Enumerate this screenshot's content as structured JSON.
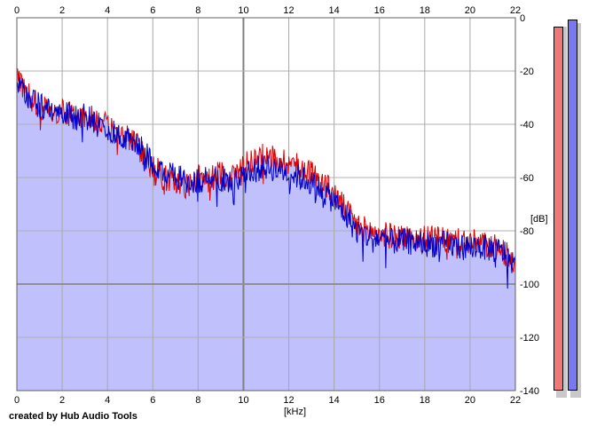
{
  "credit": "created by Hub Audio Tools",
  "chart_data": {
    "type": "area",
    "title": "",
    "xlabel": "[kHz]",
    "ylabel": "[dB]",
    "xlim": [
      0,
      22
    ],
    "ylim": [
      -140,
      0
    ],
    "x_ticks": [
      "0",
      "2",
      "4",
      "6",
      "8",
      "10",
      "12",
      "14",
      "16",
      "18",
      "20",
      "22"
    ],
    "y_ticks": [
      "0",
      "-20",
      "-40",
      "-60",
      "-80",
      "-100",
      "-120",
      "-140"
    ],
    "grid": true,
    "series": [
      {
        "color": "#e00000",
        "points": [
          [
            0,
            -22
          ],
          [
            0.5,
            -28
          ],
          [
            1,
            -33
          ],
          [
            1.5,
            -37
          ],
          [
            2,
            -35
          ],
          [
            2.5,
            -37
          ],
          [
            3,
            -37
          ],
          [
            3.5,
            -38
          ],
          [
            4,
            -41
          ],
          [
            4.5,
            -44
          ],
          [
            5,
            -45
          ],
          [
            5.5,
            -50
          ],
          [
            6,
            -55
          ],
          [
            6.5,
            -60
          ],
          [
            7,
            -62
          ],
          [
            7.5,
            -63
          ],
          [
            8,
            -60
          ],
          [
            8.5,
            -61
          ],
          [
            9,
            -58
          ],
          [
            9.5,
            -60
          ],
          [
            10,
            -55
          ],
          [
            10.5,
            -53
          ],
          [
            11,
            -52
          ],
          [
            11.5,
            -53
          ],
          [
            12,
            -54
          ],
          [
            12.5,
            -56
          ],
          [
            13,
            -58
          ],
          [
            13.5,
            -62
          ],
          [
            14,
            -66
          ],
          [
            14.5,
            -72
          ],
          [
            15,
            -78
          ],
          [
            15.5,
            -80
          ],
          [
            16,
            -81
          ],
          [
            16.5,
            -82
          ],
          [
            17,
            -82
          ],
          [
            17.5,
            -83
          ],
          [
            18,
            -83
          ],
          [
            18.5,
            -83
          ],
          [
            19,
            -84
          ],
          [
            19.5,
            -84
          ],
          [
            20,
            -84
          ],
          [
            20.5,
            -85
          ],
          [
            21,
            -86
          ],
          [
            21.5,
            -88
          ],
          [
            22,
            -93
          ]
        ]
      },
      {
        "color": "#0000c8",
        "points": [
          [
            0,
            -24
          ],
          [
            0.5,
            -30
          ],
          [
            1,
            -33
          ],
          [
            1.5,
            -36
          ],
          [
            2,
            -35
          ],
          [
            2.5,
            -38
          ],
          [
            3,
            -37
          ],
          [
            3.5,
            -40
          ],
          [
            4,
            -42
          ],
          [
            4.5,
            -45
          ],
          [
            5,
            -46
          ],
          [
            5.5,
            -49
          ],
          [
            6,
            -54
          ],
          [
            6.5,
            -58
          ],
          [
            7,
            -60
          ],
          [
            7.5,
            -61
          ],
          [
            8,
            -61
          ],
          [
            8.5,
            -61
          ],
          [
            9,
            -60
          ],
          [
            9.5,
            -62
          ],
          [
            10,
            -58
          ],
          [
            10.5,
            -57
          ],
          [
            11,
            -56
          ],
          [
            11.5,
            -57
          ],
          [
            12,
            -58
          ],
          [
            12.5,
            -60
          ],
          [
            13,
            -62
          ],
          [
            13.5,
            -65
          ],
          [
            14,
            -69
          ],
          [
            14.5,
            -74
          ],
          [
            15,
            -80
          ],
          [
            15.5,
            -82
          ],
          [
            16,
            -83
          ],
          [
            16.5,
            -84
          ],
          [
            17,
            -84
          ],
          [
            17.5,
            -84
          ],
          [
            18,
            -85
          ],
          [
            18.5,
            -85
          ],
          [
            19,
            -85
          ],
          [
            19.5,
            -86
          ],
          [
            20,
            -86
          ],
          [
            20.5,
            -86
          ],
          [
            21,
            -87
          ],
          [
            21.5,
            -88
          ],
          [
            22,
            -93
          ]
        ]
      }
    ],
    "fill_color": "#c0c0fc"
  },
  "meters": [
    {
      "color": "#f07878",
      "level": 0.98
    },
    {
      "color": "#7878f0",
      "level": 1.0
    }
  ]
}
